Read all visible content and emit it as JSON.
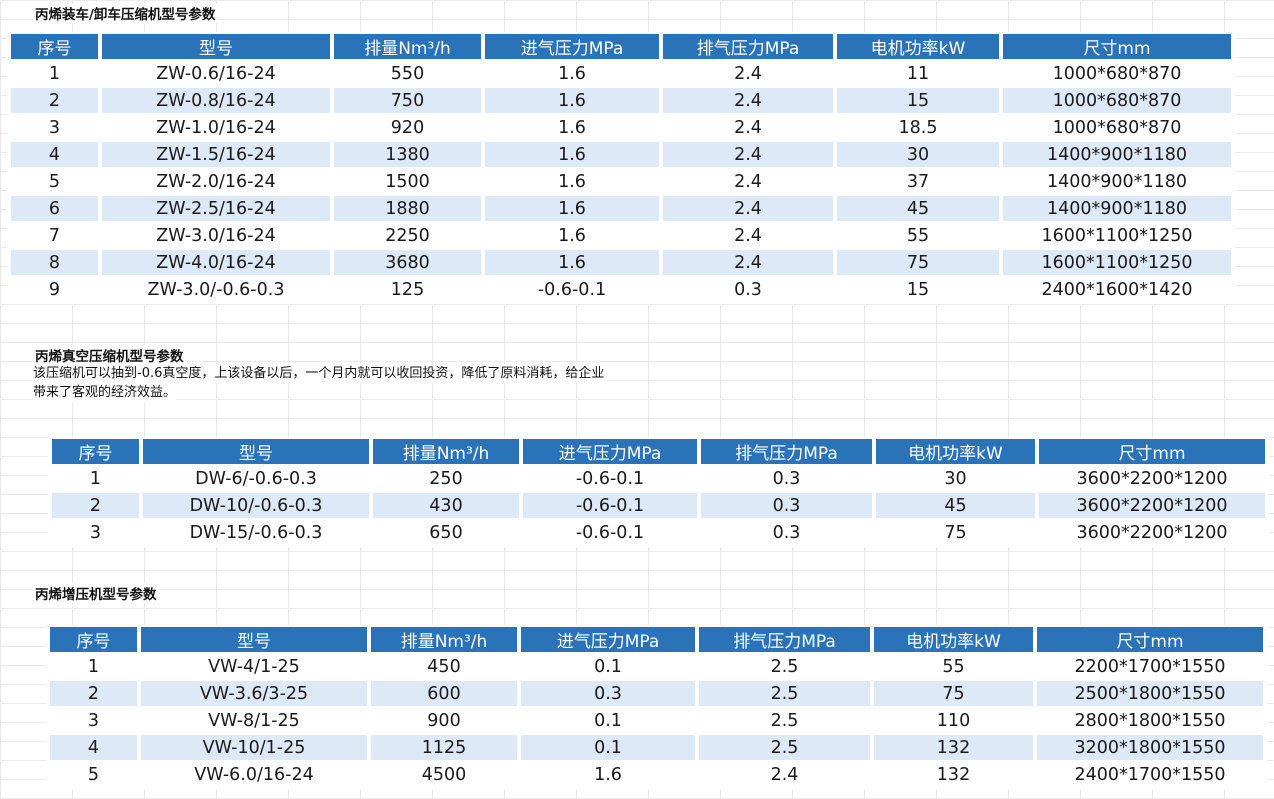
{
  "sections": [
    {
      "title": "丙烯装车/卸车压缩机型号参数",
      "headers": [
        "序号",
        "型号",
        "排量Nm³/h",
        "进气压力MPa",
        "排气压力MPa",
        "电机功率kW",
        "尺寸mm"
      ],
      "rows": [
        [
          "1",
          "ZW-0.6/16-24",
          "550",
          "1.6",
          "2.4",
          "11",
          "1000*680*870"
        ],
        [
          "2",
          "ZW-0.8/16-24",
          "750",
          "1.6",
          "2.4",
          "15",
          "1000*680*870"
        ],
        [
          "3",
          "ZW-1.0/16-24",
          "920",
          "1.6",
          "2.4",
          "18.5",
          "1000*680*870"
        ],
        [
          "4",
          "ZW-1.5/16-24",
          "1380",
          "1.6",
          "2.4",
          "30",
          "1400*900*1180"
        ],
        [
          "5",
          "ZW-2.0/16-24",
          "1500",
          "1.6",
          "2.4",
          "37",
          "1400*900*1180"
        ],
        [
          "6",
          "ZW-2.5/16-24",
          "1880",
          "1.6",
          "2.4",
          "45",
          "1400*900*1180"
        ],
        [
          "7",
          "ZW-3.0/16-24",
          "2250",
          "1.6",
          "2.4",
          "55",
          "1600*1100*1250"
        ],
        [
          "8",
          "ZW-4.0/16-24",
          "3680",
          "1.6",
          "2.4",
          "75",
          "1600*1100*1250"
        ],
        [
          "9",
          "ZW-3.0/-0.6-0.3",
          "125",
          "-0.6-0.1",
          "0.3",
          "15",
          "2400*1600*1420"
        ]
      ]
    },
    {
      "title": "丙烯真空压缩机型号参数",
      "description": [
        "该压缩机可以抽到-0.6真空度，上该设备以后，一个月内就可以收回投资，降低了原料消耗，给企业",
        "带来了客观的经济效益。"
      ],
      "headers": [
        "序号",
        "型号",
        "排量Nm³/h",
        "进气压力MPa",
        "排气压力MPa",
        "电机功率kW",
        "尺寸mm"
      ],
      "rows": [
        [
          "1",
          "DW-6/-0.6-0.3",
          "250",
          "-0.6-0.1",
          "0.3",
          "30",
          "3600*2200*1200"
        ],
        [
          "2",
          "DW-10/-0.6-0.3",
          "430",
          "-0.6-0.1",
          "0.3",
          "45",
          "3600*2200*1200"
        ],
        [
          "3",
          "DW-15/-0.6-0.3",
          "650",
          "-0.6-0.1",
          "0.3",
          "75",
          "3600*2200*1200"
        ]
      ]
    },
    {
      "title": "丙烯增压机型号参数",
      "headers": [
        "序号",
        "型号",
        "排量Nm³/h",
        "进气压力MPa",
        "排气压力MPa",
        "电机功率kW",
        "尺寸mm"
      ],
      "rows": [
        [
          "1",
          "VW-4/1-25",
          "450",
          "0.1",
          "2.5",
          "55",
          "2200*1700*1550"
        ],
        [
          "2",
          "VW-3.6/3-25",
          "600",
          "0.3",
          "2.5",
          "75",
          "2500*1800*1550"
        ],
        [
          "3",
          "VW-8/1-25",
          "900",
          "0.1",
          "2.5",
          "110",
          "2800*1800*1550"
        ],
        [
          "4",
          "VW-10/1-25",
          "1125",
          "0.1",
          "2.5",
          "132",
          "3200*1800*1550"
        ],
        [
          "5",
          "VW-6.0/16-24",
          "4500",
          "1.6",
          "2.4",
          "132",
          "2400*1700*1550"
        ]
      ]
    }
  ],
  "colors": {
    "header_bg": "#2b73b9",
    "header_text": "#ffffff",
    "alt_row": "#dde9f6"
  }
}
